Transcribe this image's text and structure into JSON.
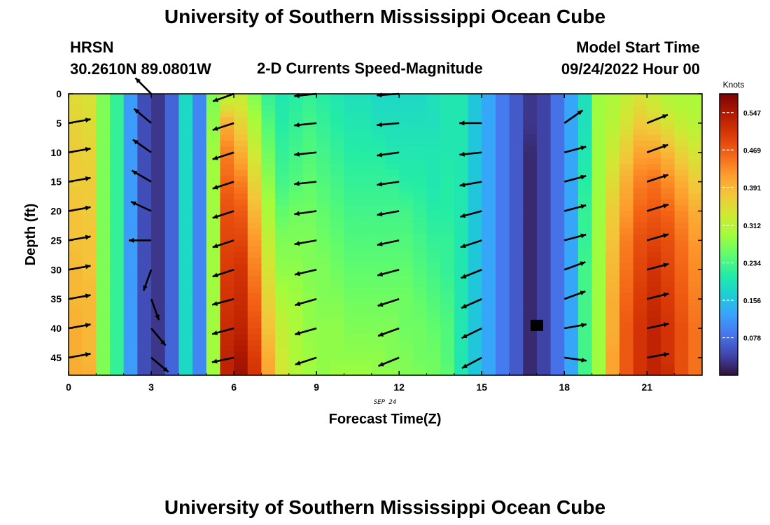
{
  "header": {
    "title_top": "University of Southern Mississippi Ocean Cube",
    "title_bottom": "University of Southern Mississippi Ocean Cube",
    "station": "HRSN",
    "coords": "30.2610N  89.0801W",
    "subtitle": "2-D Currents Speed-Magnitude",
    "start_label": "Model Start Time",
    "start_value": "09/24/2022 Hour 00"
  },
  "chart_data": {
    "type": "heatmap",
    "title": "2-D Currents Speed-Magnitude",
    "xlabel": "Forecast Time(Z)",
    "ylabel": "Depth (ft)",
    "x_date_label": "SEP 24",
    "xlim": [
      0,
      23
    ],
    "ylim": [
      48,
      0
    ],
    "x_ticks": [
      0,
      3,
      6,
      9,
      12,
      15,
      18,
      21
    ],
    "y_ticks": [
      0,
      5,
      10,
      15,
      20,
      25,
      30,
      35,
      40,
      45
    ],
    "colorbar": {
      "label": "Knots",
      "min": 0,
      "max": 0.586,
      "ticks": [
        0.078,
        0.156,
        0.234,
        0.312,
        0.391,
        0.469,
        0.547
      ],
      "colors": [
        "#30123b",
        "#4145ab",
        "#4675ed",
        "#39a2fc",
        "#1bcfd4",
        "#24eca6",
        "#61fc6c",
        "#a4fc3b",
        "#d1e834",
        "#f3c63a",
        "#fe9b2d",
        "#f36315",
        "#d93806",
        "#b11901",
        "#7a0403"
      ]
    },
    "hours": [
      0.25,
      0.75,
      1.25,
      1.75,
      2.25,
      2.75,
      3.25,
      3.75,
      4.25,
      4.75,
      5.25,
      5.75,
      6.25,
      6.75,
      7.25,
      7.75,
      8.25,
      8.75,
      9.25,
      9.75,
      10.25,
      10.75,
      11.25,
      11.75,
      12.25,
      12.75,
      13.25,
      13.75,
      14.25,
      14.75,
      15.25,
      15.75,
      16.25,
      16.75,
      17.25,
      17.75,
      18.25,
      18.75,
      19.25,
      19.75,
      20.25,
      20.75,
      21.25,
      21.75,
      22.25,
      22.75
    ],
    "depth_profile": [
      0,
      5,
      10,
      15,
      20,
      25,
      30,
      35,
      40,
      45,
      48
    ],
    "column_speeds": [
      [
        0.35,
        0.36,
        0.37,
        0.37,
        0.38,
        0.38,
        0.39,
        0.39,
        0.4,
        0.4,
        0.4
      ],
      [
        0.34,
        0.35,
        0.36,
        0.37,
        0.37,
        0.38,
        0.38,
        0.39,
        0.39,
        0.39,
        0.4
      ],
      [
        0.27,
        0.27,
        0.27,
        0.27,
        0.27,
        0.27,
        0.27,
        0.27,
        0.27,
        0.27,
        0.27
      ],
      [
        0.22,
        0.22,
        0.22,
        0.22,
        0.22,
        0.22,
        0.22,
        0.22,
        0.22,
        0.22,
        0.22
      ],
      [
        0.12,
        0.12,
        0.12,
        0.12,
        0.12,
        0.12,
        0.12,
        0.12,
        0.12,
        0.12,
        0.12
      ],
      [
        0.05,
        0.05,
        0.05,
        0.05,
        0.05,
        0.05,
        0.05,
        0.05,
        0.05,
        0.05,
        0.05
      ],
      [
        0.03,
        0.03,
        0.03,
        0.03,
        0.03,
        0.03,
        0.03,
        0.03,
        0.03,
        0.03,
        0.03
      ],
      [
        0.07,
        0.07,
        0.07,
        0.07,
        0.07,
        0.07,
        0.07,
        0.07,
        0.07,
        0.07,
        0.07
      ],
      [
        0.18,
        0.18,
        0.18,
        0.18,
        0.18,
        0.18,
        0.18,
        0.18,
        0.18,
        0.18,
        0.18
      ],
      [
        0.1,
        0.1,
        0.1,
        0.1,
        0.1,
        0.1,
        0.1,
        0.1,
        0.1,
        0.1,
        0.1
      ],
      [
        0.27,
        0.28,
        0.29,
        0.29,
        0.29,
        0.29,
        0.29,
        0.29,
        0.29,
        0.29,
        0.29
      ],
      [
        0.3,
        0.4,
        0.44,
        0.46,
        0.48,
        0.49,
        0.5,
        0.51,
        0.52,
        0.53,
        0.53
      ],
      [
        0.32,
        0.36,
        0.4,
        0.44,
        0.47,
        0.49,
        0.51,
        0.52,
        0.53,
        0.55,
        0.56
      ],
      [
        0.27,
        0.3,
        0.33,
        0.36,
        0.39,
        0.42,
        0.44,
        0.46,
        0.48,
        0.5,
        0.51
      ],
      [
        0.22,
        0.24,
        0.26,
        0.28,
        0.3,
        0.32,
        0.34,
        0.36,
        0.38,
        0.4,
        0.41
      ],
      [
        0.2,
        0.21,
        0.22,
        0.23,
        0.25,
        0.27,
        0.28,
        0.3,
        0.32,
        0.33,
        0.34
      ],
      [
        0.21,
        0.22,
        0.23,
        0.24,
        0.26,
        0.27,
        0.28,
        0.29,
        0.3,
        0.3,
        0.31
      ],
      [
        0.22,
        0.23,
        0.24,
        0.25,
        0.26,
        0.27,
        0.27,
        0.28,
        0.28,
        0.29,
        0.29
      ],
      [
        0.21,
        0.22,
        0.23,
        0.24,
        0.25,
        0.26,
        0.27,
        0.27,
        0.28,
        0.28,
        0.28
      ],
      [
        0.2,
        0.21,
        0.22,
        0.23,
        0.24,
        0.25,
        0.26,
        0.27,
        0.28,
        0.28,
        0.29
      ],
      [
        0.19,
        0.2,
        0.21,
        0.22,
        0.23,
        0.24,
        0.25,
        0.26,
        0.27,
        0.28,
        0.29
      ],
      [
        0.19,
        0.2,
        0.21,
        0.22,
        0.23,
        0.24,
        0.25,
        0.26,
        0.27,
        0.28,
        0.29
      ],
      [
        0.18,
        0.19,
        0.21,
        0.22,
        0.23,
        0.24,
        0.25,
        0.26,
        0.27,
        0.28,
        0.28
      ],
      [
        0.18,
        0.19,
        0.2,
        0.22,
        0.23,
        0.24,
        0.25,
        0.26,
        0.27,
        0.27,
        0.28
      ],
      [
        0.18,
        0.19,
        0.2,
        0.21,
        0.23,
        0.24,
        0.25,
        0.26,
        0.26,
        0.27,
        0.27
      ],
      [
        0.18,
        0.19,
        0.2,
        0.21,
        0.22,
        0.23,
        0.24,
        0.25,
        0.26,
        0.26,
        0.27
      ],
      [
        0.19,
        0.19,
        0.2,
        0.2,
        0.21,
        0.22,
        0.23,
        0.24,
        0.25,
        0.26,
        0.26
      ],
      [
        0.2,
        0.2,
        0.2,
        0.21,
        0.21,
        0.22,
        0.22,
        0.23,
        0.24,
        0.24,
        0.25
      ],
      [
        0.2,
        0.2,
        0.2,
        0.2,
        0.2,
        0.2,
        0.2,
        0.2,
        0.2,
        0.2,
        0.2
      ],
      [
        0.16,
        0.16,
        0.16,
        0.16,
        0.16,
        0.16,
        0.16,
        0.16,
        0.16,
        0.16,
        0.16
      ],
      [
        0.13,
        0.13,
        0.13,
        0.13,
        0.13,
        0.13,
        0.13,
        0.13,
        0.13,
        0.13,
        0.13
      ],
      [
        0.09,
        0.09,
        0.09,
        0.09,
        0.09,
        0.09,
        0.09,
        0.09,
        0.09,
        0.09,
        0.09
      ],
      [
        0.06,
        0.06,
        0.06,
        0.06,
        0.06,
        0.06,
        0.06,
        0.06,
        0.06,
        0.06,
        0.06
      ],
      [
        0.03,
        0.03,
        0.02,
        0.02,
        0.02,
        0.02,
        0.02,
        0.02,
        0.02,
        0.02,
        0.02
      ],
      [
        0.04,
        0.04,
        0.04,
        0.04,
        0.04,
        0.04,
        0.04,
        0.04,
        0.04,
        0.04,
        0.04
      ],
      [
        0.08,
        0.08,
        0.08,
        0.08,
        0.08,
        0.08,
        0.08,
        0.08,
        0.08,
        0.08,
        0.08
      ],
      [
        0.13,
        0.13,
        0.13,
        0.13,
        0.13,
        0.13,
        0.13,
        0.13,
        0.13,
        0.13,
        0.13
      ],
      [
        0.19,
        0.19,
        0.2,
        0.21,
        0.22,
        0.22,
        0.23,
        0.23,
        0.23,
        0.23,
        0.23
      ],
      [
        0.29,
        0.29,
        0.29,
        0.29,
        0.29,
        0.29,
        0.29,
        0.29,
        0.29,
        0.29,
        0.29
      ],
      [
        0.3,
        0.31,
        0.33,
        0.35,
        0.37,
        0.38,
        0.39,
        0.4,
        0.4,
        0.41,
        0.41
      ],
      [
        0.32,
        0.34,
        0.37,
        0.4,
        0.42,
        0.44,
        0.45,
        0.46,
        0.47,
        0.47,
        0.47
      ],
      [
        0.34,
        0.37,
        0.41,
        0.44,
        0.46,
        0.48,
        0.49,
        0.5,
        0.51,
        0.51,
        0.51
      ],
      [
        0.32,
        0.36,
        0.41,
        0.45,
        0.47,
        0.49,
        0.51,
        0.52,
        0.53,
        0.53,
        0.53
      ],
      [
        0.3,
        0.34,
        0.39,
        0.43,
        0.46,
        0.48,
        0.49,
        0.5,
        0.51,
        0.51,
        0.52
      ],
      [
        0.3,
        0.32,
        0.36,
        0.4,
        0.43,
        0.45,
        0.46,
        0.47,
        0.48,
        0.48,
        0.48
      ],
      [
        0.3,
        0.31,
        0.34,
        0.37,
        0.4,
        0.42,
        0.43,
        0.44,
        0.45,
        0.45,
        0.45
      ]
    ],
    "arrow_depths": [
      5,
      10,
      15,
      20,
      25,
      30,
      35,
      40,
      45
    ],
    "arrows": [
      {
        "t": 0,
        "depth": 5,
        "dir_deg": 10
      },
      {
        "t": 0,
        "depth": 10,
        "dir_deg": 10
      },
      {
        "t": 0,
        "depth": 15,
        "dir_deg": 10
      },
      {
        "t": 0,
        "depth": 20,
        "dir_deg": 10
      },
      {
        "t": 0,
        "depth": 25,
        "dir_deg": 10
      },
      {
        "t": 0,
        "depth": 30,
        "dir_deg": 10
      },
      {
        "t": 0,
        "depth": 35,
        "dir_deg": 10
      },
      {
        "t": 0,
        "depth": 40,
        "dir_deg": 10
      },
      {
        "t": 0,
        "depth": 45,
        "dir_deg": 10
      },
      {
        "t": 3,
        "depth": 0,
        "dir_deg": 135
      },
      {
        "t": 3,
        "depth": 5,
        "dir_deg": 140
      },
      {
        "t": 3,
        "depth": 10,
        "dir_deg": 145
      },
      {
        "t": 3,
        "depth": 15,
        "dir_deg": 150
      },
      {
        "t": 3,
        "depth": 20,
        "dir_deg": 155
      },
      {
        "t": 3,
        "depth": 25,
        "dir_deg": 180
      },
      {
        "t": 3,
        "depth": 30,
        "dir_deg": 250
      },
      {
        "t": 3,
        "depth": 35,
        "dir_deg": 290
      },
      {
        "t": 3,
        "depth": 40,
        "dir_deg": 310
      },
      {
        "t": 3,
        "depth": 45,
        "dir_deg": 320
      },
      {
        "t": 6,
        "depth": 0,
        "dir_deg": 200
      },
      {
        "t": 6,
        "depth": 5,
        "dir_deg": 198
      },
      {
        "t": 6,
        "depth": 10,
        "dir_deg": 198
      },
      {
        "t": 6,
        "depth": 15,
        "dir_deg": 198
      },
      {
        "t": 6,
        "depth": 20,
        "dir_deg": 198
      },
      {
        "t": 6,
        "depth": 25,
        "dir_deg": 198
      },
      {
        "t": 6,
        "depth": 30,
        "dir_deg": 198
      },
      {
        "t": 6,
        "depth": 35,
        "dir_deg": 195
      },
      {
        "t": 6,
        "depth": 40,
        "dir_deg": 195
      },
      {
        "t": 6,
        "depth": 45,
        "dir_deg": 192
      },
      {
        "t": 9,
        "depth": 0,
        "dir_deg": 186
      },
      {
        "t": 9,
        "depth": 5,
        "dir_deg": 186
      },
      {
        "t": 9,
        "depth": 10,
        "dir_deg": 186
      },
      {
        "t": 9,
        "depth": 15,
        "dir_deg": 186
      },
      {
        "t": 9,
        "depth": 20,
        "dir_deg": 188
      },
      {
        "t": 9,
        "depth": 25,
        "dir_deg": 190
      },
      {
        "t": 9,
        "depth": 30,
        "dir_deg": 193
      },
      {
        "t": 9,
        "depth": 35,
        "dir_deg": 196
      },
      {
        "t": 9,
        "depth": 40,
        "dir_deg": 196
      },
      {
        "t": 9,
        "depth": 45,
        "dir_deg": 198
      },
      {
        "t": 12,
        "depth": 0,
        "dir_deg": 184
      },
      {
        "t": 12,
        "depth": 5,
        "dir_deg": 185
      },
      {
        "t": 12,
        "depth": 10,
        "dir_deg": 188
      },
      {
        "t": 12,
        "depth": 15,
        "dir_deg": 188
      },
      {
        "t": 12,
        "depth": 20,
        "dir_deg": 190
      },
      {
        "t": 12,
        "depth": 25,
        "dir_deg": 192
      },
      {
        "t": 12,
        "depth": 30,
        "dir_deg": 195
      },
      {
        "t": 12,
        "depth": 35,
        "dir_deg": 198
      },
      {
        "t": 12,
        "depth": 40,
        "dir_deg": 200
      },
      {
        "t": 12,
        "depth": 45,
        "dir_deg": 202
      },
      {
        "t": 15,
        "depth": 5,
        "dir_deg": 180
      },
      {
        "t": 15,
        "depth": 10,
        "dir_deg": 186
      },
      {
        "t": 15,
        "depth": 15,
        "dir_deg": 190
      },
      {
        "t": 15,
        "depth": 20,
        "dir_deg": 195
      },
      {
        "t": 15,
        "depth": 25,
        "dir_deg": 198
      },
      {
        "t": 15,
        "depth": 30,
        "dir_deg": 202
      },
      {
        "t": 15,
        "depth": 35,
        "dir_deg": 204
      },
      {
        "t": 15,
        "depth": 40,
        "dir_deg": 206
      },
      {
        "t": 15,
        "depth": 45,
        "dir_deg": 208
      },
      {
        "t": 18,
        "depth": 5,
        "dir_deg": 35
      },
      {
        "t": 18,
        "depth": 10,
        "dir_deg": 15
      },
      {
        "t": 18,
        "depth": 15,
        "dir_deg": 15
      },
      {
        "t": 18,
        "depth": 20,
        "dir_deg": 15
      },
      {
        "t": 18,
        "depth": 25,
        "dir_deg": 15
      },
      {
        "t": 18,
        "depth": 30,
        "dir_deg": 20
      },
      {
        "t": 18,
        "depth": 35,
        "dir_deg": 20
      },
      {
        "t": 18,
        "depth": 40,
        "dir_deg": 10
      },
      {
        "t": 18,
        "depth": 45,
        "dir_deg": -8
      },
      {
        "t": 21,
        "depth": 5,
        "dir_deg": 22
      },
      {
        "t": 21,
        "depth": 10,
        "dir_deg": 20
      },
      {
        "t": 21,
        "depth": 15,
        "dir_deg": 18
      },
      {
        "t": 21,
        "depth": 20,
        "dir_deg": 17
      },
      {
        "t": 21,
        "depth": 25,
        "dir_deg": 16
      },
      {
        "t": 21,
        "depth": 30,
        "dir_deg": 15
      },
      {
        "t": 21,
        "depth": 35,
        "dir_deg": 14
      },
      {
        "t": 21,
        "depth": 40,
        "dir_deg": 12
      },
      {
        "t": 21,
        "depth": 45,
        "dir_deg": 10
      }
    ],
    "marker": {
      "t": 17,
      "depth": 39.5,
      "shape": "square"
    },
    "grid": false
  }
}
